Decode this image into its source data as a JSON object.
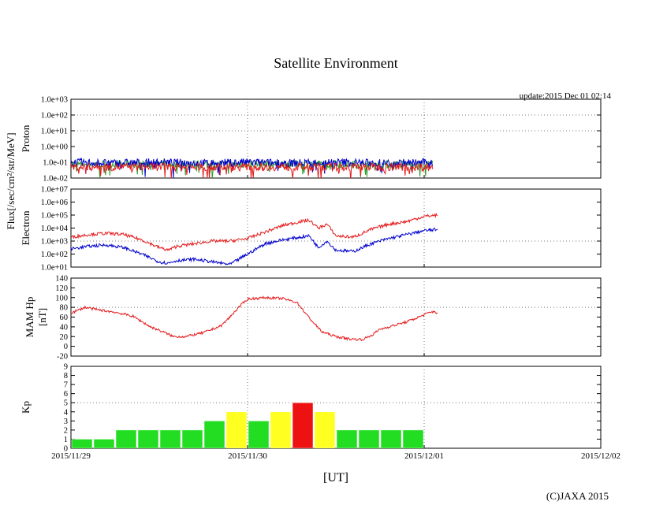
{
  "chart_data": {
    "type": "line",
    "title": "Satellite Environment",
    "update": "update:2015 Dec 01 02:14",
    "copyright": "(C)JAXA 2015",
    "xlabel": "[UT]",
    "x_ticks": [
      "2015/11/29",
      "2015/11/30",
      "2015/12/01",
      "2015/12/02"
    ],
    "flux_label": "Flux[/sec/cm²/str/MeV]",
    "colors": {
      "red": "#e41a1c",
      "blue": "#0000cc",
      "green": "#2ca02c",
      "kp_green": "#22dd22",
      "kp_yellow": "#ffff22",
      "kp_red": "#ee1111"
    },
    "panels": [
      {
        "name": "proton",
        "ylabel": "Proton",
        "yscale": "log",
        "ylim": [
          -2,
          3
        ],
        "y_ticks": [
          "1.0e-02",
          "1.0e-01",
          "1.0e+00",
          "1.0e+01",
          "1.0e+02",
          "1.0e+03"
        ],
        "gridlines": [
          1,
          2
        ],
        "series": [
          {
            "name": "proton-low",
            "color": "#2ca02c",
            "x": [
              0,
              0.25,
              0.5,
              0.75,
              1.0,
              1.25,
              1.5,
              1.75,
              2.05
            ],
            "log_values": [
              -1.15,
              -1.1,
              -1.12,
              -1.15,
              -1.1,
              -1.12,
              -1.1,
              -1.15,
              -1.12
            ]
          },
          {
            "name": "proton-mid",
            "color": "#0000cc",
            "x": [
              0,
              0.25,
              0.5,
              0.75,
              1.0,
              1.25,
              1.5,
              1.75,
              2.05
            ],
            "log_values": [
              -1.0,
              -1.05,
              -1.0,
              -1.05,
              -1.0,
              -1.05,
              -1.0,
              -1.05,
              -1.0
            ]
          },
          {
            "name": "proton-high",
            "color": "#e41a1c",
            "x": [
              0,
              0.25,
              0.5,
              0.75,
              1.0,
              1.25,
              1.5,
              1.75,
              2.05
            ],
            "log_values": [
              -1.3,
              -1.3,
              -1.3,
              -1.3,
              -1.3,
              -1.3,
              -1.3,
              -1.3,
              -1.3
            ]
          }
        ]
      },
      {
        "name": "electron",
        "ylabel": "Electron",
        "yscale": "log",
        "ylim": [
          1,
          7
        ],
        "y_ticks": [
          "1.0e+01",
          "1.0e+02",
          "1.0e+03",
          "1.0e+04",
          "1.0e+05",
          "1.0e+06",
          "1.0e+07"
        ],
        "gridlines": [
          3
        ],
        "series": [
          {
            "name": "electron-low",
            "color": "#e41a1c",
            "x": [
              0,
              0.1,
              0.2,
              0.3,
              0.4,
              0.5,
              0.55,
              0.6,
              0.7,
              0.8,
              0.9,
              1.0,
              1.1,
              1.2,
              1.3,
              1.35,
              1.4,
              1.45,
              1.5,
              1.6,
              1.7,
              1.8,
              1.9,
              2.0,
              2.08
            ],
            "log_values": [
              3.3,
              3.5,
              3.6,
              3.5,
              3.1,
              2.5,
              2.3,
              2.6,
              2.8,
              3.0,
              3.0,
              3.2,
              3.7,
              4.2,
              4.5,
              4.6,
              4.0,
              4.3,
              3.4,
              3.3,
              3.9,
              4.3,
              4.5,
              4.9,
              5.0
            ]
          },
          {
            "name": "electron-high",
            "color": "#0000cc",
            "x": [
              0,
              0.1,
              0.2,
              0.3,
              0.4,
              0.5,
              0.55,
              0.6,
              0.7,
              0.8,
              0.9,
              1.0,
              1.1,
              1.2,
              1.3,
              1.35,
              1.4,
              1.45,
              1.5,
              1.6,
              1.7,
              1.8,
              1.9,
              2.0,
              2.08
            ],
            "log_values": [
              2.4,
              2.6,
              2.7,
              2.5,
              2.0,
              1.4,
              1.3,
              1.5,
              1.6,
              1.4,
              1.2,
              2.0,
              2.8,
              3.1,
              3.3,
              3.4,
              2.5,
              3.0,
              2.3,
              2.2,
              2.8,
              3.2,
              3.5,
              3.8,
              3.9
            ]
          }
        ]
      },
      {
        "name": "mam-hp",
        "ylabel": "MAM Hp",
        "ylabel2": "[nT]",
        "yscale": "linear",
        "ylim": [
          -20,
          140
        ],
        "y_ticks": [
          "-20",
          "0",
          "20",
          "40",
          "60",
          "80",
          "100",
          "120",
          "140"
        ],
        "gridlines": [
          80
        ],
        "series": [
          {
            "name": "hp",
            "color": "#e41a1c",
            "x": [
              0,
              0.08,
              0.15,
              0.25,
              0.35,
              0.45,
              0.52,
              0.58,
              0.65,
              0.75,
              0.85,
              0.9,
              0.95,
              1.0,
              1.1,
              1.2,
              1.28,
              1.35,
              1.42,
              1.5,
              1.58,
              1.65,
              1.7,
              1.75,
              1.82,
              1.9,
              1.97,
              2.02,
              2.06,
              2.08
            ],
            "values": [
              68,
              80,
              75,
              70,
              62,
              40,
              30,
              20,
              20,
              28,
              42,
              60,
              80,
              97,
              100,
              98,
              90,
              58,
              30,
              20,
              15,
              14,
              22,
              35,
              42,
              50,
              60,
              68,
              72,
              64
            ]
          }
        ]
      },
      {
        "name": "kp",
        "ylabel": "Kp",
        "yscale": "linear",
        "ylim": [
          0,
          9
        ],
        "y_ticks": [
          "0",
          "1",
          "2",
          "3",
          "4",
          "5",
          "6",
          "7",
          "8",
          "9"
        ],
        "gridlines": [
          5
        ],
        "bars": [
          1,
          1,
          2,
          2,
          2,
          2,
          3,
          4,
          3,
          4,
          5,
          4,
          2,
          2,
          2,
          2
        ],
        "bar_width_days": 0.125
      }
    ]
  }
}
